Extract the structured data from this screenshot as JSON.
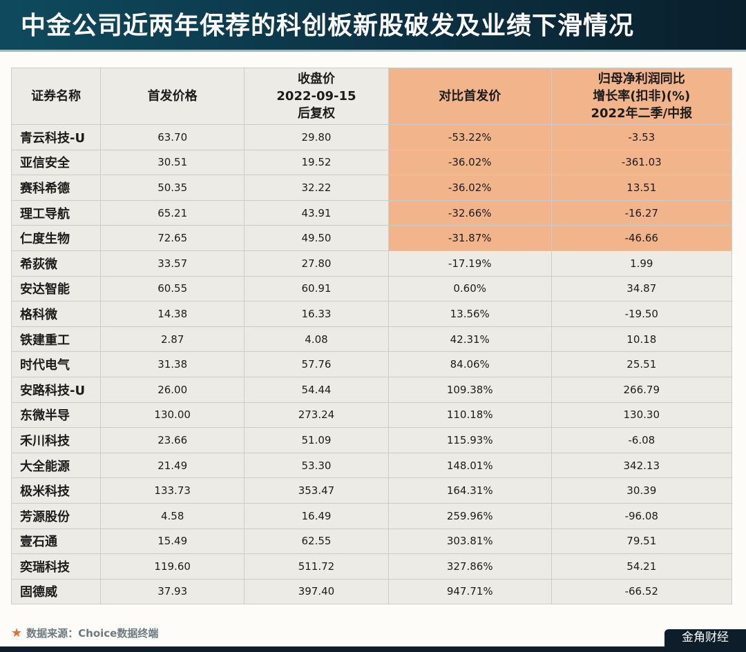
{
  "title": "中金公司近两年保荐的科创板新股破发及业绩下滑情况",
  "headers": [
    "证券名称",
    "首发价格",
    "收盘价\n2022-09-15\n后复权",
    "对比首发价",
    "归母净利润同比\n增长率(扣非)(%)\n2022年二季/中报"
  ],
  "rows": [
    [
      "青云科技-U",
      "63.70",
      "29.80",
      "-53.22%",
      "-3.53"
    ],
    [
      "亚信安全",
      "30.51",
      "19.52",
      "-36.02%",
      "-361.03"
    ],
    [
      "赛科希德",
      "50.35",
      "32.22",
      "-36.02%",
      "13.51"
    ],
    [
      "理工导航",
      "65.21",
      "43.91",
      "-32.66%",
      "-16.27"
    ],
    [
      "仁度生物",
      "72.65",
      "49.50",
      "-31.87%",
      "-46.66"
    ],
    [
      "希荻微",
      "33.57",
      "27.80",
      "-17.19%",
      "1.99"
    ],
    [
      "安达智能",
      "60.55",
      "60.91",
      "0.60%",
      "34.87"
    ],
    [
      "格科微",
      "14.38",
      "16.33",
      "13.56%",
      "-19.50"
    ],
    [
      "铁建重工",
      "2.87",
      "4.08",
      "42.31%",
      "10.18"
    ],
    [
      "时代电气",
      "31.38",
      "57.76",
      "84.06%",
      "25.51"
    ],
    [
      "安路科技-U",
      "26.00",
      "54.44",
      "109.38%",
      "266.79"
    ],
    [
      "东微半导",
      "130.00",
      "273.24",
      "110.18%",
      "130.30"
    ],
    [
      "禾川科技",
      "23.66",
      "51.09",
      "115.93%",
      "-6.08"
    ],
    [
      "大全能源",
      "21.49",
      "53.30",
      "148.01%",
      "342.13"
    ],
    [
      "极米科技",
      "133.73",
      "353.47",
      "164.31%",
      "30.39"
    ],
    [
      "芳源股份",
      "4.58",
      "16.49",
      "259.96%",
      "-96.08"
    ],
    [
      "壹石通",
      "15.49",
      "62.55",
      "303.81%",
      "79.51"
    ],
    [
      "奕瑞科技",
      "119.60",
      "511.72",
      "327.86%",
      "54.21"
    ],
    [
      "固德威",
      "37.93",
      "397.40",
      "947.71%",
      "-66.52"
    ]
  ],
  "highlighted_rows": 5,
  "footer": {
    "source": "数据来源：Choice数据终端",
    "brand": "金角财经"
  },
  "colors": {
    "highlight": "#f2b48a",
    "title_bg": "#0e4a5e"
  }
}
